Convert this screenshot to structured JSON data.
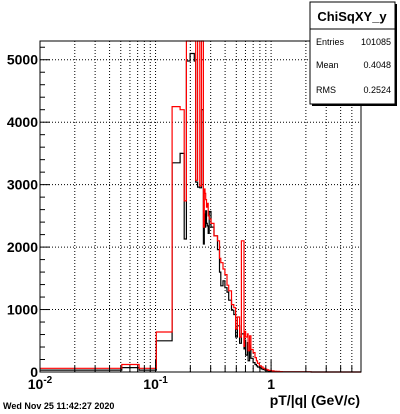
{
  "timestamp": "Wed Nov 25 11:42:27 2020",
  "stats": {
    "title": "ChiSqXY_y",
    "rows": [
      {
        "label": "Entries",
        "value": "101085"
      },
      {
        "label": "Mean",
        "value": "0.4048"
      },
      {
        "label": "RMS",
        "value": "0.2524"
      }
    ]
  },
  "colors": {
    "series_black": "#000000",
    "series_red": "#ff0000",
    "grid": "#000000"
  },
  "chart_data": {
    "type": "histogram-step",
    "xlabel": "pT/|q| (GeV/c)",
    "ylabel": "",
    "x_scale": "log",
    "xlim": [
      0.01,
      6.0
    ],
    "ylim": [
      0,
      5300
    ],
    "grid": true,
    "x_major_ticks": [
      {
        "value": 0.01,
        "label": "10^-2"
      },
      {
        "value": 0.1,
        "label": "10^-1"
      },
      {
        "value": 1,
        "label": "1"
      }
    ],
    "y_ticks": [
      {
        "value": 0,
        "label": "0"
      },
      {
        "value": 1000,
        "label": "1000"
      },
      {
        "value": 2000,
        "label": "2000"
      },
      {
        "value": 3000,
        "label": "3000"
      },
      {
        "value": 4000,
        "label": "4000"
      },
      {
        "value": 5000,
        "label": "5000"
      }
    ],
    "series": [
      {
        "color": "#000000",
        "x": [
          0.01,
          0.04,
          0.043,
          0.051,
          0.058,
          0.072,
          0.083,
          0.1015,
          0.139,
          0.163,
          0.177,
          0.185,
          0.199,
          0.2165,
          0.2228,
          0.2311,
          0.2415,
          0.2498,
          0.2595,
          0.264,
          0.2678,
          0.2719,
          0.2762,
          0.2803,
          0.2856,
          0.2913,
          0.3017,
          0.3205,
          0.3436,
          0.3579,
          0.3672,
          0.3834,
          0.3987,
          0.4155,
          0.4295,
          0.4542,
          0.476,
          0.4926,
          0.5113,
          0.534,
          0.5535,
          0.5823,
          0.5899,
          0.6016,
          0.6233,
          0.633,
          0.6522,
          0.6681,
          0.699,
          0.7252,
          0.7455,
          0.7623,
          0.7918,
          0.8235,
          0.851,
          0.8846,
          0.9201,
          0.9505,
          1.0063,
          1.0603,
          1.1142,
          1.1823,
          1.2483,
          1.3268,
          1.4158,
          1.5072,
          1.6087,
          1.7224,
          1.855,
          2.0099,
          2.2185,
          2.458,
          2.7728,
          3.2009,
          3.7878
        ],
        "y": [
          30,
          30,
          30,
          70,
          70,
          30,
          30,
          500,
          3350,
          3500,
          2130,
          4980,
          5100,
          4980,
          3040,
          2960,
          2950,
          4200,
          2050,
          2530,
          2320,
          2580,
          2380,
          2340,
          2220,
          2570,
          2320,
          2180,
          1960,
          1600,
          1380,
          1460,
          1350,
          1280,
          1150,
          990,
          920,
          560,
          740,
          460,
          610,
          370,
          510,
          270,
          470,
          180,
          420,
          220,
          150,
          120,
          100,
          80,
          70,
          50,
          40,
          30,
          20,
          15,
          10,
          8,
          6,
          5,
          4,
          3,
          3,
          2,
          2,
          1,
          1,
          1,
          0,
          0,
          0,
          0,
          0
        ]
      },
      {
        "color": "#ff0000",
        "x": [
          0.01,
          0.04,
          0.043,
          0.051,
          0.058,
          0.072,
          0.083,
          0.1015,
          0.139,
          0.163,
          0.177,
          0.185,
          0.199,
          0.2165,
          0.2228,
          0.2311,
          0.2415,
          0.2498,
          0.2595,
          0.264,
          0.2678,
          0.2719,
          0.2762,
          0.2803,
          0.2856,
          0.2913,
          0.3017,
          0.3205,
          0.3436,
          0.3579,
          0.3672,
          0.3834,
          0.3987,
          0.4155,
          0.4295,
          0.4542,
          0.476,
          0.4926,
          0.5113,
          0.534,
          0.5535,
          0.5823,
          0.5899,
          0.6016,
          0.6233,
          0.633,
          0.6522,
          0.6681,
          0.699,
          0.7252,
          0.7455,
          0.7623,
          0.7918,
          0.8235,
          0.851,
          0.8846,
          0.9201,
          0.9505,
          1.0063,
          1.0603,
          1.1142,
          1.1823,
          1.2483,
          1.3268,
          1.4158,
          1.5072,
          1.6087,
          1.7224,
          1.855,
          2.0099,
          2.2185,
          2.458,
          2.7728,
          3.2009,
          3.7878
        ],
        "y": [
          60,
          60,
          60,
          120,
          120,
          60,
          60,
          640,
          4250,
          4200,
          2740,
          5300,
          5300,
          5300,
          3070,
          5300,
          2980,
          5300,
          2320,
          2930,
          2860,
          2760,
          2640,
          2700,
          2500,
          2450,
          2380,
          2180,
          2100,
          1820,
          1750,
          1650,
          1560,
          1390,
          1300,
          1080,
          1030,
          690,
          880,
          560,
          2100,
          410,
          650,
          560,
          610,
          340,
          580,
          360,
          310,
          230,
          180,
          140,
          100,
          80,
          60,
          45,
          35,
          25,
          18,
          12,
          9,
          6,
          4,
          3,
          3,
          2,
          2,
          1,
          1,
          1,
          0,
          0,
          0,
          0,
          0
        ]
      }
    ]
  }
}
